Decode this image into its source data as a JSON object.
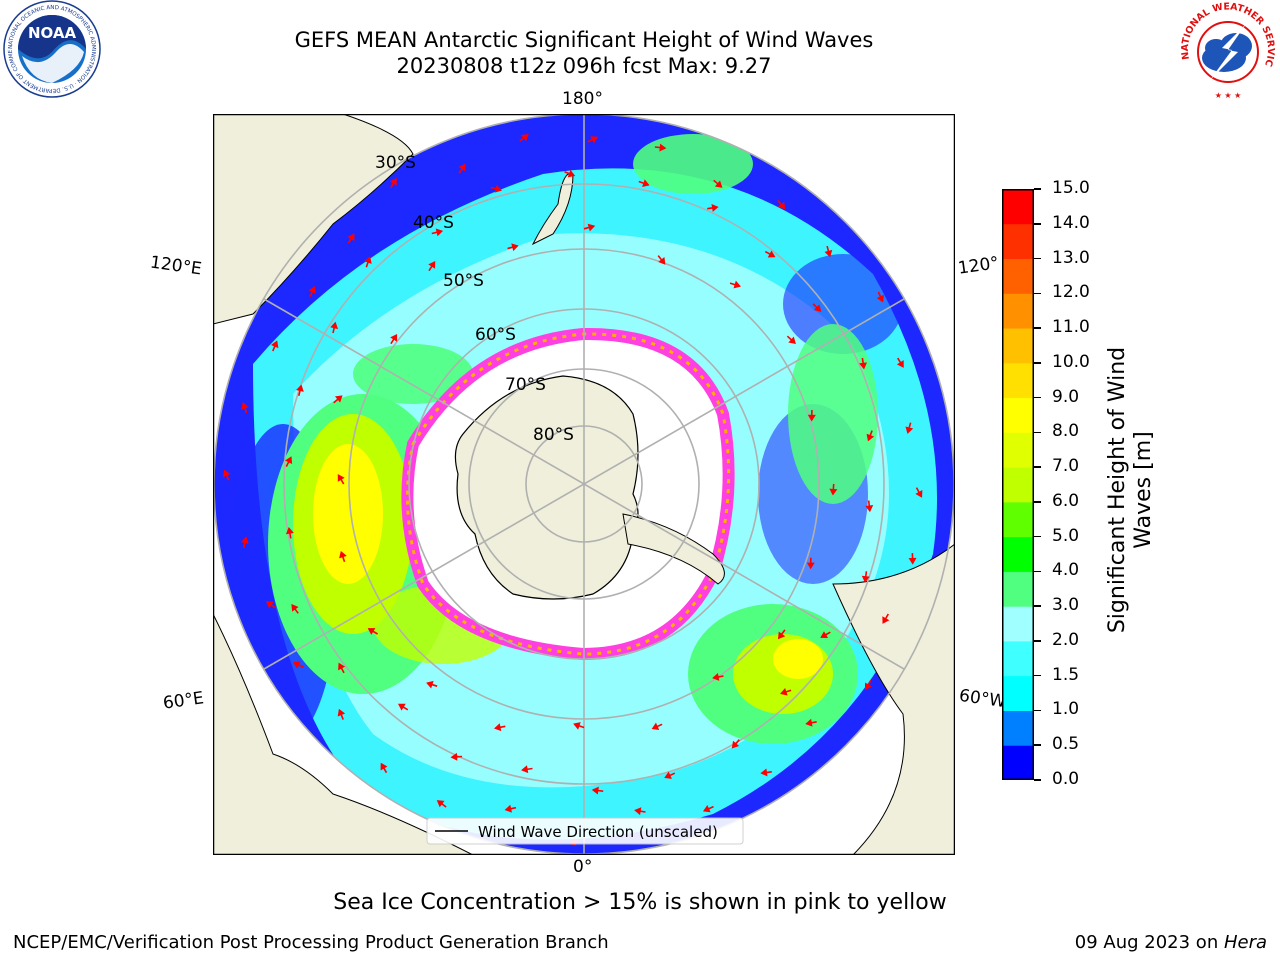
{
  "title": {
    "line1": "GEFS MEAN Antarctic Significant Height of Wind Waves",
    "line2": "20230808 t12z 096h fcst   Max: 9.27"
  },
  "logos": {
    "noaa": {
      "text": "NOAA",
      "ring": "NATIONAL OCEANIC AND ATMOSPHERIC ADMINISTRATION · U.S. DEPARTMENT OF COMMERCE ·"
    },
    "nws": {
      "ring": "NATIONAL WEATHER SERVICE"
    }
  },
  "map": {
    "projection": "south-polar-stereographic",
    "longitude_labels": {
      "top": "180°",
      "bottom": "0°",
      "left_upper": "120°E",
      "left_lower": "60°E",
      "right_upper": "120°",
      "right_lower": "60°W"
    },
    "latitude_labels": [
      "30°S",
      "40°S",
      "50°S",
      "60°S",
      "70°S",
      "80°S"
    ],
    "legend": "Wind Wave Direction (unscaled)"
  },
  "colorbar": {
    "label_line1": "Significant Height of Wind",
    "label_line2": "Waves [m]",
    "ticks": [
      "0.0",
      "0.5",
      "1.0",
      "1.5",
      "2.0",
      "3.0",
      "4.0",
      "5.0",
      "6.0",
      "7.0",
      "8.0",
      "9.0",
      "10.0",
      "11.0",
      "12.0",
      "13.0",
      "14.0",
      "15.0"
    ],
    "colors": [
      "#0000ff",
      "#0080ff",
      "#00ffff",
      "#40ffff",
      "#a0ffff",
      "#50ff80",
      "#00ff00",
      "#60ff00",
      "#c0ff00",
      "#e0ff00",
      "#ffff00",
      "#ffe000",
      "#ffc000",
      "#ff9000",
      "#ff6000",
      "#ff3000",
      "#ff0000"
    ]
  },
  "note": "Sea Ice Concentration > 15% is shown in pink to yellow",
  "footer": {
    "left": "NCEP/EMC/Verification Post Processing Product Generation Branch",
    "right_prefix": "09 Aug 2023 on ",
    "right_italic": "Hera"
  }
}
